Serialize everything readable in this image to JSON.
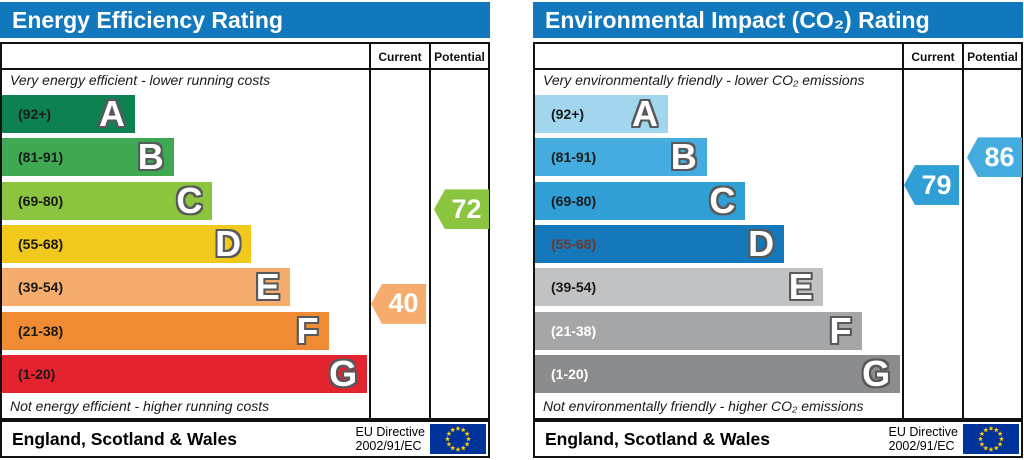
{
  "chart_data": [
    {
      "type": "bar",
      "title": "Energy Efficiency Rating",
      "top_note": "Very energy efficient - lower running costs",
      "bottom_note": "Not energy efficient - higher running costs",
      "header_color": "#1278bd",
      "bands": [
        {
          "letter": "A",
          "range": "(92+)",
          "min": 92,
          "max": 100,
          "color": "#0e8152"
        },
        {
          "letter": "B",
          "range": "(81-91)",
          "min": 81,
          "max": 91,
          "color": "#3fa852"
        },
        {
          "letter": "C",
          "range": "(69-80)",
          "min": 69,
          "max": 80,
          "color": "#8bc43e"
        },
        {
          "letter": "D",
          "range": "(55-68)",
          "min": 55,
          "max": 68,
          "color": "#f1c91c"
        },
        {
          "letter": "E",
          "range": "(39-54)",
          "min": 39,
          "max": 54,
          "color": "#f5ac6d"
        },
        {
          "letter": "F",
          "range": "(21-38)",
          "min": 21,
          "max": 38,
          "color": "#ee8b33"
        },
        {
          "letter": "G",
          "range": "(1-20)",
          "min": 1,
          "max": 20,
          "color": "#e3242f"
        }
      ],
      "current": {
        "label": "Current",
        "value": 40,
        "color": "#f5ac6d"
      },
      "potential": {
        "label": "Potential",
        "value": 72,
        "color": "#8bc43e"
      },
      "footer_region": "England, Scotland & Wales",
      "directive_line1": "EU Directive",
      "directive_line2": "2002/91/EC"
    },
    {
      "type": "bar",
      "title": "Environmental Impact (CO₂) Rating",
      "top_note": "Very environmentally friendly - lower CO₂ emissions",
      "bottom_note": "Not environmentally friendly - higher CO₂ emissions",
      "header_color": "#1278bd",
      "bands": [
        {
          "letter": "A",
          "range": "(92+)",
          "min": 92,
          "max": 100,
          "color": "#a2d5ee"
        },
        {
          "letter": "B",
          "range": "(81-91)",
          "min": 81,
          "max": 91,
          "color": "#45acdf"
        },
        {
          "letter": "C",
          "range": "(69-80)",
          "min": 69,
          "max": 80,
          "color": "#2f9fd6"
        },
        {
          "letter": "D",
          "range": "(55-68)",
          "min": 55,
          "max": 68,
          "color": "#1478bb",
          "range_color": "#6e382e"
        },
        {
          "letter": "E",
          "range": "(39-54)",
          "min": 39,
          "max": 54,
          "color": "#c1c2c3"
        },
        {
          "letter": "F",
          "range": "(21-38)",
          "min": 21,
          "max": 38,
          "color": "#a5a6a8",
          "range_color": "#ffffff"
        },
        {
          "letter": "G",
          "range": "(1-20)",
          "min": 1,
          "max": 20,
          "color": "#8a8c8e",
          "range_color": "#ffffff"
        }
      ],
      "current": {
        "label": "Current",
        "value": 79,
        "color": "#2f9fd6"
      },
      "potential": {
        "label": "Potential",
        "value": 86,
        "color": "#45acdf"
      },
      "footer_region": "England, Scotland & Wales",
      "directive_line1": "EU Directive",
      "directive_line2": "2002/91/EC"
    }
  ]
}
